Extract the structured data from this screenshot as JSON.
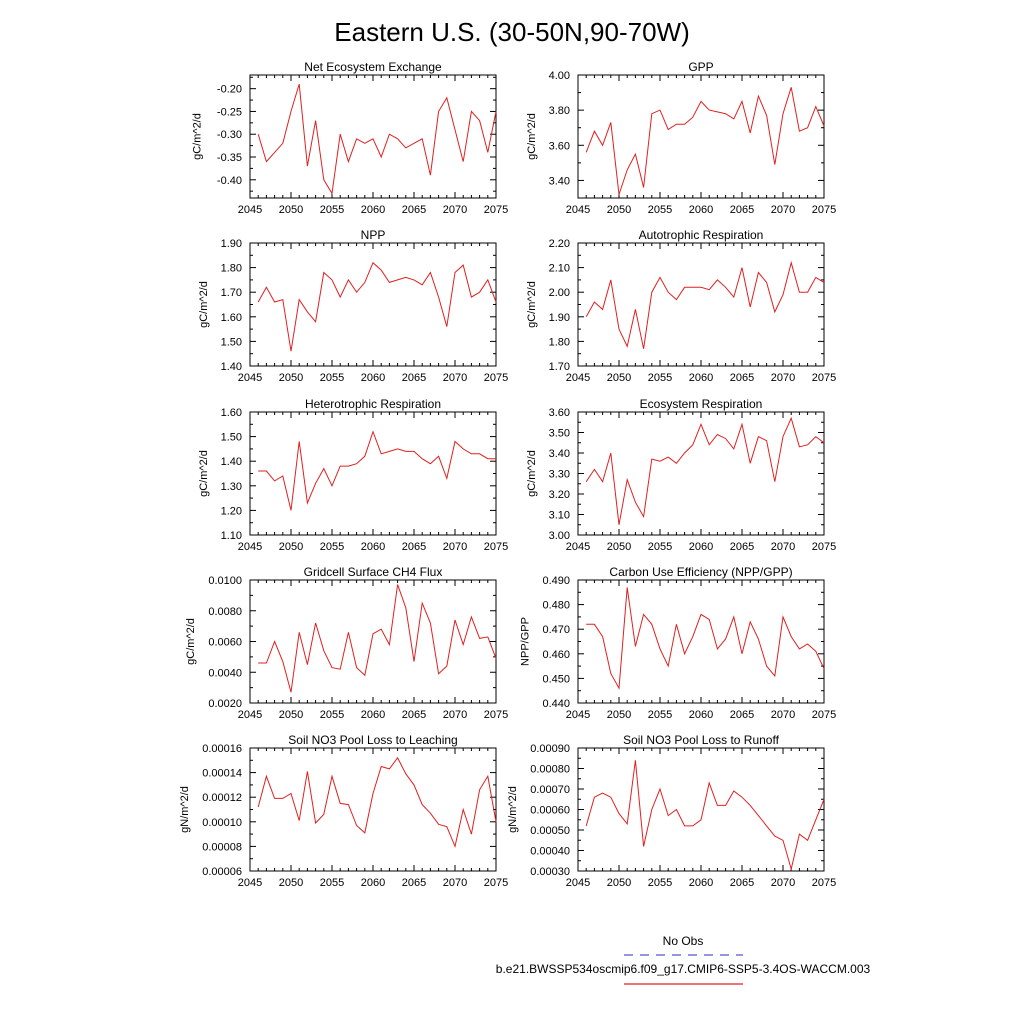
{
  "page_title": "Eastern U.S. (30-50N,90-70W)",
  "legend": {
    "entries": [
      {
        "name": "No Obs",
        "color": "#5555cc",
        "dash": true
      },
      {
        "name": "b.e21.BWSSP534oscmip6.f09_g17.CMIP6-SSP5-3.4OS-WACCM.003",
        "color": "#e02020",
        "dash": false
      }
    ]
  },
  "chart_data": [
    {
      "type": "line",
      "title": "Net Ecosystem Exchange",
      "ylabel": "gC/m^2/d",
      "xlim": [
        2045,
        2075
      ],
      "xticks": [
        "2045",
        "2050",
        "2055",
        "2060",
        "2065",
        "2070",
        "2075"
      ],
      "ylim": [
        -0.44,
        -0.17
      ],
      "yticks": [
        "-0.20",
        "-0.25",
        "-0.30",
        "-0.35",
        "-0.40"
      ],
      "x": [
        2046,
        2047,
        2048,
        2049,
        2050,
        2051,
        2052,
        2053,
        2054,
        2055,
        2056,
        2057,
        2058,
        2059,
        2060,
        2061,
        2062,
        2063,
        2064,
        2065,
        2066,
        2067,
        2068,
        2069,
        2070,
        2071,
        2072,
        2073,
        2074,
        2075
      ],
      "series": [
        {
          "color": "#e02020",
          "values": [
            -0.3,
            -0.36,
            -0.34,
            -0.32,
            -0.25,
            -0.19,
            -0.37,
            -0.27,
            -0.4,
            -0.43,
            -0.3,
            -0.36,
            -0.31,
            -0.32,
            -0.31,
            -0.35,
            -0.3,
            -0.31,
            -0.33,
            -0.32,
            -0.31,
            -0.39,
            -0.25,
            -0.22,
            -0.29,
            -0.36,
            -0.25,
            -0.27,
            -0.34,
            -0.25
          ]
        }
      ]
    },
    {
      "type": "line",
      "title": "GPP",
      "ylabel": "gC/m^2/d",
      "xlim": [
        2045,
        2075
      ],
      "xticks": [
        "2045",
        "2050",
        "2055",
        "2060",
        "2065",
        "2070",
        "2075"
      ],
      "ylim": [
        3.3,
        4.0
      ],
      "yticks": [
        "4.00",
        "3.80",
        "3.60",
        "3.40"
      ],
      "x": [
        2046,
        2047,
        2048,
        2049,
        2050,
        2051,
        2052,
        2053,
        2054,
        2055,
        2056,
        2057,
        2058,
        2059,
        2060,
        2061,
        2062,
        2063,
        2064,
        2065,
        2066,
        2067,
        2068,
        2069,
        2070,
        2071,
        2072,
        2073,
        2074,
        2075
      ],
      "series": [
        {
          "color": "#e02020",
          "values": [
            3.56,
            3.68,
            3.6,
            3.73,
            3.32,
            3.46,
            3.55,
            3.36,
            3.78,
            3.8,
            3.69,
            3.72,
            3.72,
            3.76,
            3.85,
            3.8,
            3.79,
            3.78,
            3.75,
            3.85,
            3.67,
            3.88,
            3.77,
            3.49,
            3.78,
            3.93,
            3.68,
            3.7,
            3.82,
            3.71
          ]
        }
      ]
    },
    {
      "type": "line",
      "title": "NPP",
      "ylabel": "gC/m^2/d",
      "xlim": [
        2045,
        2075
      ],
      "xticks": [
        "2045",
        "2050",
        "2055",
        "2060",
        "2065",
        "2070",
        "2075"
      ],
      "ylim": [
        1.4,
        1.9
      ],
      "yticks": [
        "1.90",
        "1.80",
        "1.70",
        "1.60",
        "1.50",
        "1.40"
      ],
      "x": [
        2046,
        2047,
        2048,
        2049,
        2050,
        2051,
        2052,
        2053,
        2054,
        2055,
        2056,
        2057,
        2058,
        2059,
        2060,
        2061,
        2062,
        2063,
        2064,
        2065,
        2066,
        2067,
        2068,
        2069,
        2070,
        2071,
        2072,
        2073,
        2074,
        2075
      ],
      "series": [
        {
          "color": "#e02020",
          "values": [
            1.66,
            1.72,
            1.66,
            1.67,
            1.46,
            1.67,
            1.62,
            1.58,
            1.78,
            1.75,
            1.68,
            1.75,
            1.7,
            1.74,
            1.82,
            1.79,
            1.74,
            1.75,
            1.76,
            1.75,
            1.73,
            1.78,
            1.68,
            1.56,
            1.78,
            1.81,
            1.68,
            1.7,
            1.75,
            1.66
          ]
        }
      ]
    },
    {
      "type": "line",
      "title": "Autotrophic Respiration",
      "ylabel": "gC/m^2/d",
      "xlim": [
        2045,
        2075
      ],
      "xticks": [
        "2045",
        "2050",
        "2055",
        "2060",
        "2065",
        "2070",
        "2075"
      ],
      "ylim": [
        1.7,
        2.2
      ],
      "yticks": [
        "2.20",
        "2.10",
        "2.00",
        "1.90",
        "1.80",
        "1.70"
      ],
      "x": [
        2046,
        2047,
        2048,
        2049,
        2050,
        2051,
        2052,
        2053,
        2054,
        2055,
        2056,
        2057,
        2058,
        2059,
        2060,
        2061,
        2062,
        2063,
        2064,
        2065,
        2066,
        2067,
        2068,
        2069,
        2070,
        2071,
        2072,
        2073,
        2074,
        2075
      ],
      "series": [
        {
          "color": "#e02020",
          "values": [
            1.9,
            1.96,
            1.93,
            2.05,
            1.85,
            1.78,
            1.93,
            1.77,
            2.0,
            2.06,
            2.0,
            1.97,
            2.02,
            2.02,
            2.02,
            2.01,
            2.05,
            2.02,
            1.98,
            2.1,
            1.94,
            2.08,
            2.04,
            1.92,
            1.99,
            2.12,
            2.0,
            2.0,
            2.06,
            2.04
          ]
        }
      ]
    },
    {
      "type": "line",
      "title": "Heterotrophic Respiration",
      "ylabel": "gC/m^2/d",
      "xlim": [
        2045,
        2075
      ],
      "xticks": [
        "2045",
        "2050",
        "2055",
        "2060",
        "2065",
        "2070",
        "2075"
      ],
      "ylim": [
        1.1,
        1.6
      ],
      "yticks": [
        "1.60",
        "1.50",
        "1.40",
        "1.30",
        "1.20",
        "1.10"
      ],
      "x": [
        2046,
        2047,
        2048,
        2049,
        2050,
        2051,
        2052,
        2053,
        2054,
        2055,
        2056,
        2057,
        2058,
        2059,
        2060,
        2061,
        2062,
        2063,
        2064,
        2065,
        2066,
        2067,
        2068,
        2069,
        2070,
        2071,
        2072,
        2073,
        2074,
        2075
      ],
      "series": [
        {
          "color": "#e02020",
          "values": [
            1.36,
            1.36,
            1.32,
            1.34,
            1.2,
            1.48,
            1.23,
            1.31,
            1.37,
            1.3,
            1.38,
            1.38,
            1.39,
            1.42,
            1.52,
            1.43,
            1.44,
            1.45,
            1.44,
            1.44,
            1.41,
            1.39,
            1.42,
            1.33,
            1.48,
            1.45,
            1.43,
            1.43,
            1.41,
            1.41
          ]
        }
      ]
    },
    {
      "type": "line",
      "title": "Ecosystem Respiration",
      "ylabel": "gC/m^2/d",
      "xlim": [
        2045,
        2075
      ],
      "xticks": [
        "2045",
        "2050",
        "2055",
        "2060",
        "2065",
        "2070",
        "2075"
      ],
      "ylim": [
        3.0,
        3.6
      ],
      "yticks": [
        "3.60",
        "3.50",
        "3.40",
        "3.30",
        "3.20",
        "3.10",
        "3.00"
      ],
      "x": [
        2046,
        2047,
        2048,
        2049,
        2050,
        2051,
        2052,
        2053,
        2054,
        2055,
        2056,
        2057,
        2058,
        2059,
        2060,
        2061,
        2062,
        2063,
        2064,
        2065,
        2066,
        2067,
        2068,
        2069,
        2070,
        2071,
        2072,
        2073,
        2074,
        2075
      ],
      "series": [
        {
          "color": "#e02020",
          "values": [
            3.26,
            3.32,
            3.26,
            3.4,
            3.05,
            3.27,
            3.16,
            3.09,
            3.37,
            3.36,
            3.38,
            3.35,
            3.4,
            3.44,
            3.54,
            3.44,
            3.49,
            3.47,
            3.42,
            3.54,
            3.35,
            3.48,
            3.46,
            3.26,
            3.48,
            3.57,
            3.43,
            3.44,
            3.48,
            3.45
          ]
        }
      ]
    },
    {
      "type": "line",
      "title": "Gridcell Surface CH4 Flux",
      "ylabel": "gC/m^2/d",
      "xlim": [
        2045,
        2075
      ],
      "xticks": [
        "2045",
        "2050",
        "2055",
        "2060",
        "2065",
        "2070",
        "2075"
      ],
      "ylim": [
        0.002,
        0.01
      ],
      "yticks": [
        "0.0100",
        "0.0080",
        "0.0060",
        "0.0040",
        "0.0020"
      ],
      "x": [
        2046,
        2047,
        2048,
        2049,
        2050,
        2051,
        2052,
        2053,
        2054,
        2055,
        2056,
        2057,
        2058,
        2059,
        2060,
        2061,
        2062,
        2063,
        2064,
        2065,
        2066,
        2067,
        2068,
        2069,
        2070,
        2071,
        2072,
        2073,
        2074,
        2075
      ],
      "series": [
        {
          "color": "#e02020",
          "values": [
            0.0046,
            0.0046,
            0.006,
            0.0047,
            0.0027,
            0.0066,
            0.0045,
            0.0072,
            0.0054,
            0.0043,
            0.0042,
            0.0066,
            0.0043,
            0.0038,
            0.0065,
            0.0068,
            0.0058,
            0.0097,
            0.0082,
            0.0047,
            0.0085,
            0.0072,
            0.0039,
            0.0044,
            0.0074,
            0.0058,
            0.0076,
            0.0062,
            0.0063,
            0.0049
          ]
        }
      ]
    },
    {
      "type": "line",
      "title": "Carbon Use Efficiency (NPP/GPP)",
      "ylabel": "NPP/GPP",
      "xlim": [
        2045,
        2075
      ],
      "xticks": [
        "2045",
        "2050",
        "2055",
        "2060",
        "2065",
        "2070",
        "2075"
      ],
      "ylim": [
        0.44,
        0.49
      ],
      "yticks": [
        "0.490",
        "0.480",
        "0.470",
        "0.460",
        "0.450",
        "0.440"
      ],
      "x": [
        2046,
        2047,
        2048,
        2049,
        2050,
        2051,
        2052,
        2053,
        2054,
        2055,
        2056,
        2057,
        2058,
        2059,
        2060,
        2061,
        2062,
        2063,
        2064,
        2065,
        2066,
        2067,
        2068,
        2069,
        2070,
        2071,
        2072,
        2073,
        2074,
        2075
      ],
      "series": [
        {
          "color": "#e02020",
          "values": [
            0.472,
            0.472,
            0.467,
            0.452,
            0.446,
            0.487,
            0.463,
            0.476,
            0.472,
            0.462,
            0.455,
            0.472,
            0.46,
            0.467,
            0.476,
            0.474,
            0.462,
            0.466,
            0.475,
            0.46,
            0.473,
            0.466,
            0.455,
            0.451,
            0.475,
            0.467,
            0.462,
            0.464,
            0.461,
            0.454
          ]
        }
      ]
    },
    {
      "type": "line",
      "title": "Soil NO3 Pool Loss to Leaching",
      "ylabel": "gN/m^2/d",
      "xlim": [
        2045,
        2075
      ],
      "xticks": [
        "2045",
        "2050",
        "2055",
        "2060",
        "2065",
        "2070",
        "2075"
      ],
      "ylim": [
        6e-05,
        0.00016
      ],
      "yticks": [
        "0.00016",
        "0.00014",
        "0.00012",
        "0.00010",
        "0.00008",
        "0.00006"
      ],
      "x": [
        2046,
        2047,
        2048,
        2049,
        2050,
        2051,
        2052,
        2053,
        2054,
        2055,
        2056,
        2057,
        2058,
        2059,
        2060,
        2061,
        2062,
        2063,
        2064,
        2065,
        2066,
        2067,
        2068,
        2069,
        2070,
        2071,
        2072,
        2073,
        2074,
        2075
      ],
      "series": [
        {
          "color": "#e02020",
          "values": [
            0.000112,
            0.000137,
            0.000119,
            0.000119,
            0.000123,
            0.000101,
            0.000141,
            9.9e-05,
            0.000106,
            0.000137,
            0.000115,
            0.000114,
            9.7e-05,
            9.1e-05,
            0.000123,
            0.000145,
            0.000143,
            0.000152,
            0.000139,
            0.00013,
            0.000114,
            0.000107,
            9.8e-05,
            9.6e-05,
            8e-05,
            0.00011,
            9e-05,
            0.000126,
            0.000137,
            0.0001
          ]
        }
      ]
    },
    {
      "type": "line",
      "title": "Soil NO3 Pool Loss to Runoff",
      "ylabel": "gN/m^2/d",
      "xlim": [
        2045,
        2075
      ],
      "xticks": [
        "2045",
        "2050",
        "2055",
        "2060",
        "2065",
        "2070",
        "2075"
      ],
      "ylim": [
        0.0003,
        0.0009
      ],
      "yticks": [
        "0.00090",
        "0.00080",
        "0.00070",
        "0.00060",
        "0.00050",
        "0.00040",
        "0.00030"
      ],
      "x": [
        2046,
        2047,
        2048,
        2049,
        2050,
        2051,
        2052,
        2053,
        2054,
        2055,
        2056,
        2057,
        2058,
        2059,
        2060,
        2061,
        2062,
        2063,
        2064,
        2065,
        2066,
        2067,
        2068,
        2069,
        2070,
        2071,
        2072,
        2073,
        2074,
        2075
      ],
      "series": [
        {
          "color": "#e02020",
          "values": [
            0.00052,
            0.00066,
            0.00068,
            0.00066,
            0.00058,
            0.00053,
            0.00084,
            0.00042,
            0.0006,
            0.0007,
            0.00057,
            0.0006,
            0.00052,
            0.00052,
            0.00055,
            0.00073,
            0.00062,
            0.00062,
            0.00069,
            0.00066,
            0.00062,
            0.00057,
            0.00052,
            0.00047,
            0.00045,
            0.00031,
            0.00048,
            0.00045,
            0.00055,
            0.00065
          ]
        }
      ]
    }
  ]
}
